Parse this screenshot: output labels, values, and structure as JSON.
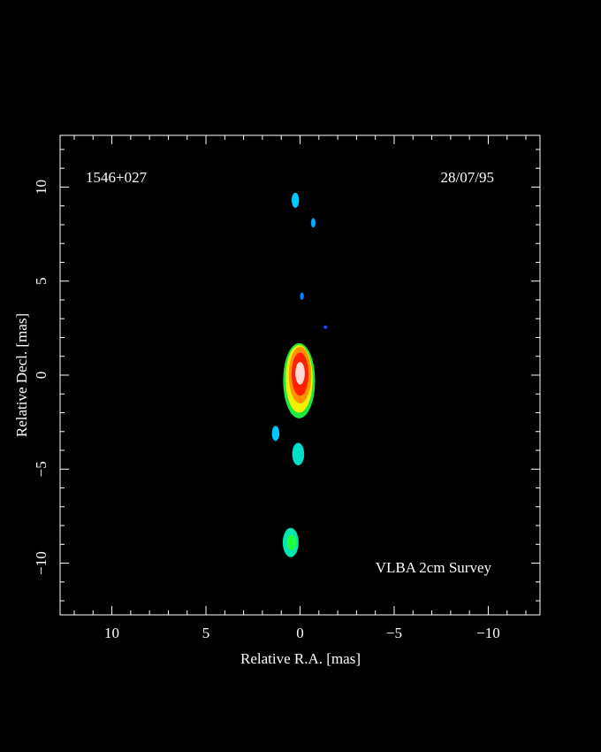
{
  "chart_data": {
    "type": "image",
    "source_label": "1546+027",
    "date_label": "28/07/95",
    "survey_label": "VLBA 2cm Survey",
    "xlabel": "Relative R.A. [mas]",
    "ylabel": "Relative Decl. [mas]",
    "xlim": [
      12.75,
      -12.75
    ],
    "ylim": [
      -12.75,
      12.75
    ],
    "xticks": [
      {
        "value": 10,
        "label": "10"
      },
      5,
      0,
      {
        "value": -5,
        "label": "−5"
      },
      {
        "value": -10,
        "label": "−10"
      }
    ],
    "yticks": [
      {
        "value": -10,
        "label": "−10"
      },
      {
        "value": -5,
        "label": "−5"
      },
      0,
      5,
      10
    ],
    "xminorticks": [
      -12,
      -11,
      -9,
      -8,
      -7,
      -6,
      -4,
      -3,
      -2,
      -1,
      1,
      2,
      3,
      4,
      6,
      7,
      8,
      9,
      11,
      12
    ],
    "yminorticks": [
      -12,
      -11,
      -9,
      -8,
      -7,
      -6,
      -4,
      -3,
      -2,
      -1,
      1,
      2,
      3,
      4,
      6,
      7,
      8,
      9,
      11,
      12
    ],
    "components": [
      {
        "x": 0.05,
        "y": -0.3,
        "rx": 0.85,
        "ry": 2.0,
        "color": "#20e840"
      },
      {
        "x": 0.05,
        "y": -0.2,
        "rx": 0.72,
        "ry": 1.8,
        "color": "#f0f000"
      },
      {
        "x": 0.0,
        "y": 0.0,
        "rx": 0.6,
        "ry": 1.5,
        "color": "#ff9000"
      },
      {
        "x": 0.0,
        "y": 0.05,
        "rx": 0.45,
        "ry": 1.15,
        "color": "#ff2000"
      },
      {
        "x": 0.0,
        "y": 0.1,
        "rx": 0.25,
        "ry": 0.6,
        "color": "#ffd8d8"
      },
      {
        "x": 0.25,
        "y": 9.3,
        "rx": 0.2,
        "ry": 0.4,
        "color": "#00c8ff"
      },
      {
        "x": -0.7,
        "y": 8.1,
        "rx": 0.12,
        "ry": 0.25,
        "color": "#00a8ff"
      },
      {
        "x": -0.1,
        "y": 4.2,
        "rx": 0.1,
        "ry": 0.2,
        "color": "#0088ff"
      },
      {
        "x": -1.35,
        "y": 2.55,
        "rx": 0.1,
        "ry": 0.1,
        "color": "#2040ff"
      },
      {
        "x": 1.3,
        "y": -3.1,
        "rx": 0.2,
        "ry": 0.4,
        "color": "#00c8ff"
      },
      {
        "x": 0.1,
        "y": -4.2,
        "rx": 0.32,
        "ry": 0.6,
        "color": "#00e0c8"
      },
      {
        "x": 0.5,
        "y": -8.9,
        "rx": 0.42,
        "ry": 0.78,
        "color": "#00e8b0"
      },
      {
        "x": 0.45,
        "y": -8.9,
        "rx": 0.25,
        "ry": 0.4,
        "color": "#20ff40"
      }
    ]
  }
}
